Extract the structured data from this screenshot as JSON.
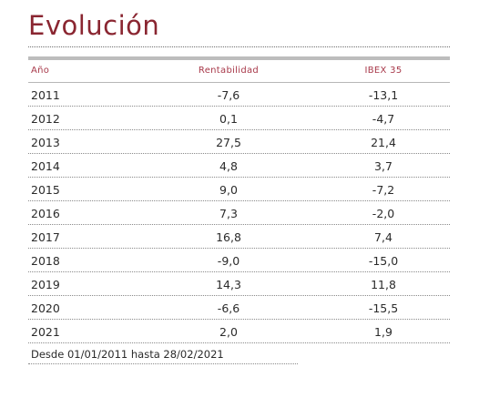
{
  "title": "Evolución",
  "table": {
    "headers": {
      "year": "Año",
      "rentabilidad": "Rentabilidad",
      "ibex": "IBEX 35"
    },
    "rows": [
      {
        "year": "2011",
        "rentabilidad": "-7,6",
        "ibex": "-13,1"
      },
      {
        "year": "2012",
        "rentabilidad": "0,1",
        "ibex": "-4,7"
      },
      {
        "year": "2013",
        "rentabilidad": "27,5",
        "ibex": "21,4"
      },
      {
        "year": "2014",
        "rentabilidad": "4,8",
        "ibex": "3,7"
      },
      {
        "year": "2015",
        "rentabilidad": "9,0",
        "ibex": "-7,2"
      },
      {
        "year": "2016",
        "rentabilidad": "7,3",
        "ibex": "-2,0"
      },
      {
        "year": "2017",
        "rentabilidad": "16,8",
        "ibex": "7,4"
      },
      {
        "year": "2018",
        "rentabilidad": "-9,0",
        "ibex": "-15,0"
      },
      {
        "year": "2019",
        "rentabilidad": "14,3",
        "ibex": "11,8"
      },
      {
        "year": "2020",
        "rentabilidad": "-6,6",
        "ibex": "-15,5"
      },
      {
        "year": "2021",
        "rentabilidad": "2,0",
        "ibex": "1,9"
      }
    ]
  },
  "footnote": "Desde 01/01/2011 hasta 28/02/2021"
}
